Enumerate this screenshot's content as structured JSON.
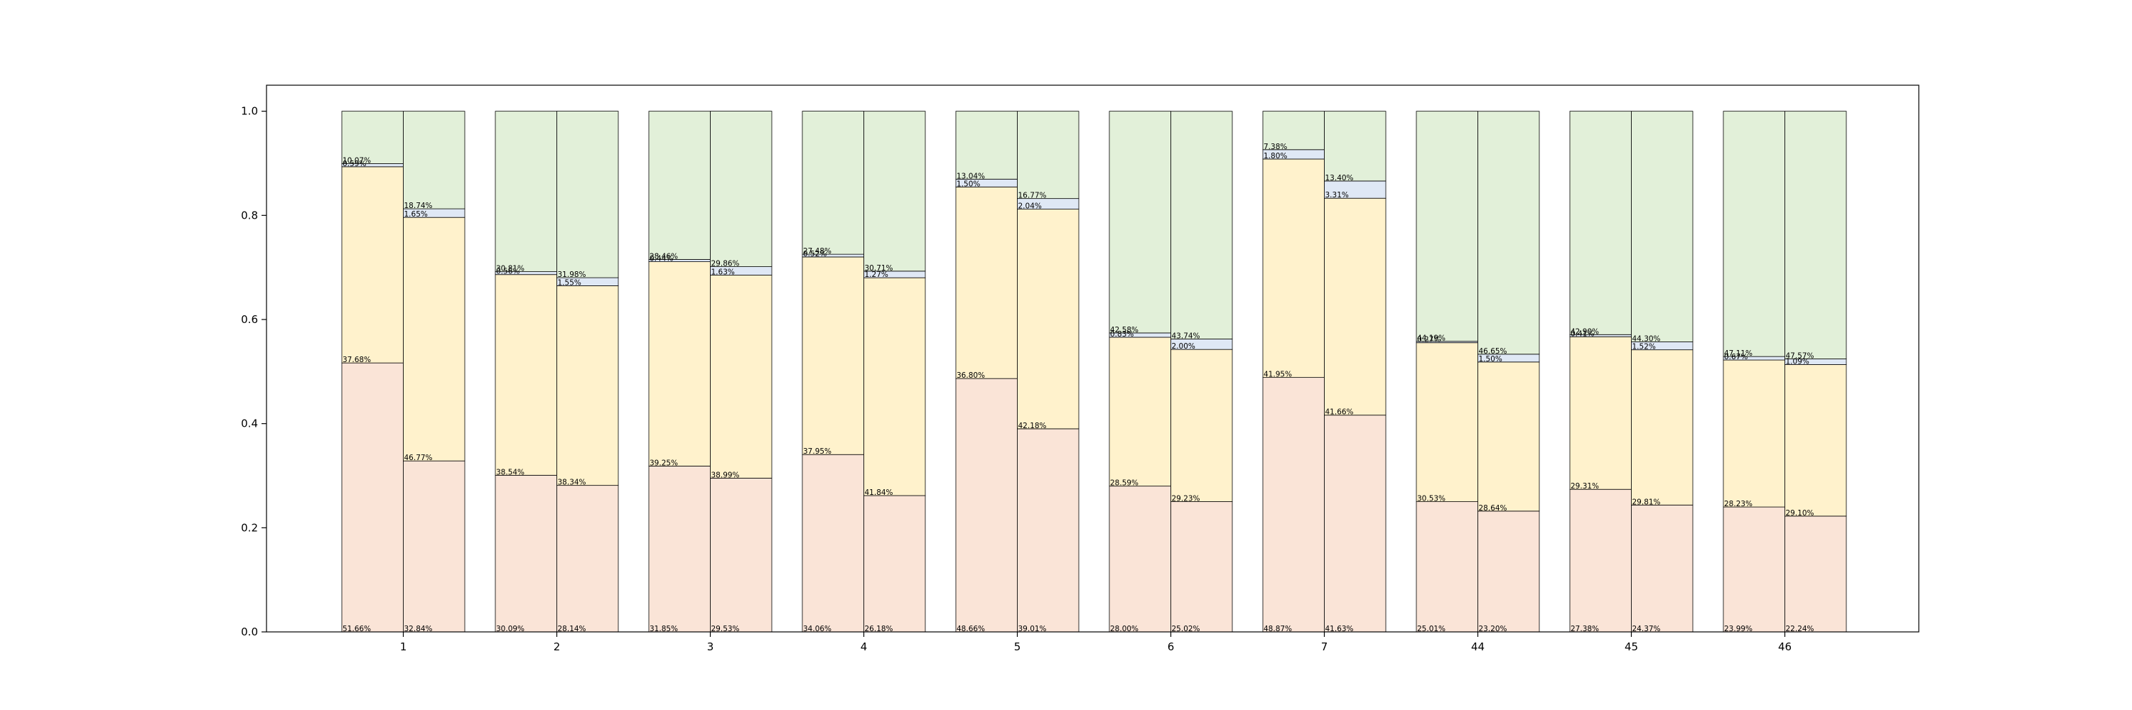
{
  "chart_data": {
    "type": "bar",
    "stacked": true,
    "normalized": true,
    "grouped_bars_per_category": 2,
    "categories": [
      "1",
      "2",
      "3",
      "4",
      "5",
      "6",
      "7",
      "44",
      "45",
      "46"
    ],
    "ylim": [
      0,
      1.05
    ],
    "yticks": [
      "0.0",
      "0.2",
      "0.4",
      "0.6",
      "0.8",
      "1.0"
    ],
    "grid": false,
    "colors": [
      "#fae4d7",
      "#fff2cc",
      "#dfe8f5",
      "#e2f0d9"
    ],
    "bars": [
      {
        "category": "1",
        "segments": [
          0.5166,
          0.3768,
          0.0059,
          0.1007
        ],
        "labels": [
          "51.66%",
          "37.68%",
          "0.59%",
          "10.07%"
        ]
      },
      {
        "category": "1",
        "segments": [
          0.3284,
          0.4677,
          0.0165,
          0.1874
        ],
        "labels": [
          "32.84%",
          "46.77%",
          "1.65%",
          "18.74%"
        ]
      },
      {
        "category": "2",
        "segments": [
          0.3009,
          0.3854,
          0.0056,
          0.3081
        ],
        "labels": [
          "30.09%",
          "38.54%",
          "0.56%",
          "30.81%"
        ]
      },
      {
        "category": "2",
        "segments": [
          0.2814,
          0.3834,
          0.0155,
          0.3198
        ],
        "labels": [
          "28.14%",
          "38.34%",
          "1.55%",
          "31.98%"
        ]
      },
      {
        "category": "3",
        "segments": [
          0.3185,
          0.3925,
          0.0044,
          0.2846
        ],
        "labels": [
          "31.85%",
          "39.25%",
          "0.44%",
          "28.46%"
        ]
      },
      {
        "category": "3",
        "segments": [
          0.2953,
          0.3899,
          0.0163,
          0.2986
        ],
        "labels": [
          "29.53%",
          "38.99%",
          "1.63%",
          "29.86%"
        ]
      },
      {
        "category": "4",
        "segments": [
          0.3406,
          0.3795,
          0.0052,
          0.2748
        ],
        "labels": [
          "34.06%",
          "37.95%",
          "0.52%",
          "27.48%"
        ]
      },
      {
        "category": "4",
        "segments": [
          0.2618,
          0.4184,
          0.0127,
          0.3071
        ],
        "labels": [
          "26.18%",
          "41.84%",
          "1.27%",
          "30.71%"
        ]
      },
      {
        "category": "5",
        "segments": [
          0.4866,
          0.368,
          0.015,
          0.1304
        ],
        "labels": [
          "48.66%",
          "36.80%",
          "1.50%",
          "13.04%"
        ]
      },
      {
        "category": "5",
        "segments": [
          0.3901,
          0.4218,
          0.0204,
          0.1677
        ],
        "labels": [
          "39.01%",
          "42.18%",
          "2.04%",
          "16.77%"
        ]
      },
      {
        "category": "6",
        "segments": [
          0.28,
          0.2859,
          0.0083,
          0.4258
        ],
        "labels": [
          "28.00%",
          "28.59%",
          "0.83%",
          "42.58%"
        ]
      },
      {
        "category": "6",
        "segments": [
          0.2502,
          0.2923,
          0.02,
          0.4374
        ],
        "labels": [
          "25.02%",
          "29.23%",
          "2.00%",
          "43.74%"
        ]
      },
      {
        "category": "7",
        "segments": [
          0.4887,
          0.4195,
          0.018,
          0.0738
        ],
        "labels": [
          "48.87%",
          "41.95%",
          "1.80%",
          "7.38%"
        ]
      },
      {
        "category": "7",
        "segments": [
          0.4163,
          0.4166,
          0.0331,
          0.134
        ],
        "labels": [
          "41.63%",
          "41.66%",
          "3.31%",
          "13.40%"
        ]
      },
      {
        "category": "44",
        "segments": [
          0.2501,
          0.3053,
          0.0027,
          0.4419
        ],
        "labels": [
          "25.01%",
          "30.53%",
          "0.27%",
          "44.19%"
        ]
      },
      {
        "category": "44",
        "segments": [
          0.232,
          0.2864,
          0.015,
          0.4665
        ],
        "labels": [
          "23.20%",
          "28.64%",
          "1.50%",
          "46.65%"
        ]
      },
      {
        "category": "45",
        "segments": [
          0.2738,
          0.2931,
          0.0041,
          0.429
        ],
        "labels": [
          "27.38%",
          "29.31%",
          "0.41%",
          "42.90%"
        ]
      },
      {
        "category": "45",
        "segments": [
          0.2437,
          0.2981,
          0.0152,
          0.443
        ],
        "labels": [
          "24.37%",
          "29.81%",
          "1.52%",
          "44.30%"
        ]
      },
      {
        "category": "46",
        "segments": [
          0.2399,
          0.2823,
          0.0067,
          0.4711
        ],
        "labels": [
          "23.99%",
          "28.23%",
          "0.67%",
          "47.11%"
        ]
      },
      {
        "category": "46",
        "segments": [
          0.2224,
          0.291,
          0.0109,
          0.4757
        ],
        "labels": [
          "22.24%",
          "29.10%",
          "1.09%",
          "47.57%"
        ]
      }
    ]
  }
}
